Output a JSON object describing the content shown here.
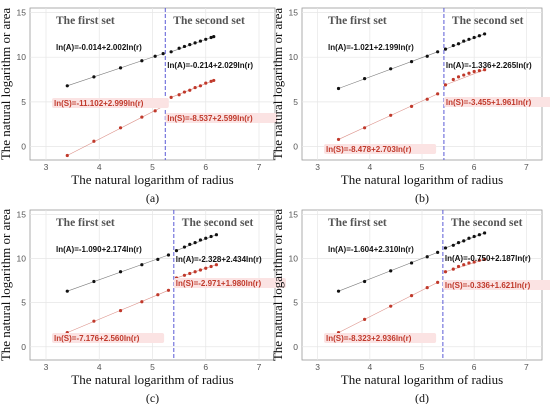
{
  "figure": {
    "x_axis_title": "The natural logarithm of radius",
    "y_axis_title": "The natural logarithm or area",
    "colors": {
      "area": "#111111",
      "circumference": "#c0392b",
      "split_line": "#5b5bd6",
      "grid": "#e6e6e6",
      "label_bg": "#fbe3e3"
    }
  },
  "chart_data": [
    {
      "type": "scatter",
      "caption": "(a)",
      "xlim": [
        2.7,
        7.3
      ],
      "ylim": [
        -1.5,
        15.5
      ],
      "xticks": [
        3,
        4,
        5,
        6,
        7
      ],
      "yticks": [
        0,
        5,
        10,
        15
      ],
      "grid": true,
      "split_x": 5.24,
      "set_titles": [
        "The first set",
        "The second set"
      ],
      "equations": {
        "area_first": "ln(A)=-0.014+2.002ln(r)",
        "area_second": "ln(A)=-0.214+2.029ln(r)",
        "circ_first": "ln(S)=-11.102+2.999ln(r)",
        "circ_second": "ln(S)=-8.537+2.599ln(r)"
      },
      "series": [
        {
          "name": "ln(A)",
          "color": "#111111",
          "x": [
            3.4,
            3.9,
            4.4,
            4.8,
            5.05,
            5.2,
            5.35,
            5.5,
            5.6,
            5.7,
            5.8,
            5.9,
            6.0,
            6.1,
            6.15
          ],
          "y": [
            6.8,
            7.8,
            8.8,
            9.6,
            10.1,
            10.4,
            10.6,
            11.0,
            11.2,
            11.4,
            11.6,
            11.8,
            12.0,
            12.2,
            12.3
          ]
        },
        {
          "name": "ln(S)",
          "color": "#c0392b",
          "x": [
            3.4,
            3.9,
            4.4,
            4.8,
            5.05,
            5.2,
            5.35,
            5.5,
            5.6,
            5.7,
            5.8,
            5.9,
            6.0,
            6.1,
            6.15
          ],
          "y": [
            -1.0,
            0.6,
            2.1,
            3.3,
            4.0,
            4.5,
            5.5,
            5.8,
            6.1,
            6.3,
            6.6,
            6.8,
            7.1,
            7.3,
            7.4
          ]
        }
      ]
    },
    {
      "type": "scatter",
      "caption": "(b)",
      "xlim": [
        2.7,
        7.3
      ],
      "ylim": [
        -1.5,
        15.5
      ],
      "xticks": [
        3,
        4,
        5,
        6,
        7
      ],
      "yticks": [
        0,
        5,
        10,
        15
      ],
      "grid": true,
      "split_x": 5.42,
      "set_titles": [
        "The first set",
        "The second set"
      ],
      "equations": {
        "area_first": "ln(A)=-1.021+2.199ln(r)",
        "area_second": "ln(A)=-1.336+2.265ln(r)",
        "circ_first": "ln(S)=-8.478+2.703ln(r)",
        "circ_second": "ln(S)=-3.455+1.961ln(r)"
      },
      "series": [
        {
          "name": "ln(A)",
          "color": "#111111",
          "x": [
            3.4,
            3.9,
            4.4,
            4.8,
            5.1,
            5.3,
            5.45,
            5.6,
            5.7,
            5.8,
            5.9,
            6.0,
            6.1,
            6.2
          ],
          "y": [
            6.5,
            7.6,
            8.7,
            9.5,
            10.1,
            10.6,
            10.9,
            11.3,
            11.5,
            11.8,
            12.0,
            12.2,
            12.4,
            12.6
          ]
        },
        {
          "name": "ln(S)",
          "color": "#c0392b",
          "x": [
            3.4,
            3.9,
            4.4,
            4.8,
            5.1,
            5.3,
            5.45,
            5.6,
            5.7,
            5.8,
            5.9,
            6.0,
            6.1,
            6.2
          ],
          "y": [
            0.8,
            2.1,
            3.5,
            4.5,
            5.3,
            5.9,
            6.9,
            7.5,
            7.8,
            8.0,
            8.2,
            8.4,
            8.5,
            8.6
          ]
        }
      ]
    },
    {
      "type": "scatter",
      "caption": "(c)",
      "xlim": [
        2.7,
        7.3
      ],
      "ylim": [
        -1.5,
        15.5
      ],
      "xticks": [
        3,
        4,
        5,
        6,
        7
      ],
      "yticks": [
        0,
        5,
        10,
        15
      ],
      "grid": true,
      "split_x": 5.4,
      "set_titles": [
        "The first set",
        "The second set"
      ],
      "equations": {
        "area_first": "ln(A)=-1.090+2.174ln(r)",
        "area_second": "ln(A)=-2.328+2.434ln(r)",
        "circ_first": "ln(S)=-7.176+2.560ln(r)",
        "circ_second": "ln(S)=-2.971+1.980ln(r)"
      },
      "series": [
        {
          "name": "ln(A)",
          "color": "#111111",
          "x": [
            3.4,
            3.9,
            4.4,
            4.8,
            5.1,
            5.3,
            5.45,
            5.6,
            5.7,
            5.8,
            5.9,
            6.0,
            6.1,
            6.2
          ],
          "y": [
            6.3,
            7.4,
            8.5,
            9.3,
            9.9,
            10.4,
            10.9,
            11.3,
            11.6,
            11.8,
            12.1,
            12.3,
            12.5,
            12.7
          ]
        },
        {
          "name": "ln(S)",
          "color": "#c0392b",
          "x": [
            3.4,
            3.9,
            4.4,
            4.8,
            5.1,
            5.3,
            5.45,
            5.6,
            5.7,
            5.8,
            5.9,
            6.0,
            6.1,
            6.2
          ],
          "y": [
            1.6,
            2.9,
            4.1,
            5.1,
            5.9,
            6.4,
            7.8,
            8.1,
            8.3,
            8.5,
            8.7,
            8.9,
            9.1,
            9.3
          ]
        }
      ]
    },
    {
      "type": "scatter",
      "caption": "(d)",
      "xlim": [
        2.7,
        7.3
      ],
      "ylim": [
        -1.5,
        15.5
      ],
      "xticks": [
        3,
        4,
        5,
        6,
        7
      ],
      "yticks": [
        0,
        5,
        10,
        15
      ],
      "grid": true,
      "split_x": 5.4,
      "set_titles": [
        "The first set",
        "The second set"
      ],
      "equations": {
        "area_first": "ln(A)=-1.604+2.310ln(r)",
        "area_second": "ln(A)=-0.750+2.187ln(r)",
        "circ_first": "ln(S)=-8.323+2.936ln(r)",
        "circ_second": "ln(S)=-0.336+1.621ln(r)"
      },
      "series": [
        {
          "name": "ln(A)",
          "color": "#111111",
          "x": [
            3.4,
            3.9,
            4.4,
            4.8,
            5.1,
            5.3,
            5.45,
            5.6,
            5.7,
            5.8,
            5.9,
            6.0,
            6.1,
            6.2
          ],
          "y": [
            6.3,
            7.4,
            8.6,
            9.5,
            10.2,
            10.7,
            11.2,
            11.5,
            11.8,
            12.0,
            12.3,
            12.5,
            12.7,
            12.9
          ]
        },
        {
          "name": "ln(S)",
          "color": "#c0392b",
          "x": [
            3.4,
            3.9,
            4.4,
            4.8,
            5.1,
            5.3,
            5.45,
            5.6,
            5.7,
            5.8,
            5.9,
            6.0,
            6.1,
            6.2
          ],
          "y": [
            1.6,
            3.1,
            4.6,
            5.8,
            6.7,
            7.3,
            8.5,
            8.8,
            9.1,
            9.3,
            9.5,
            9.6,
            9.8,
            9.9
          ]
        }
      ]
    }
  ]
}
